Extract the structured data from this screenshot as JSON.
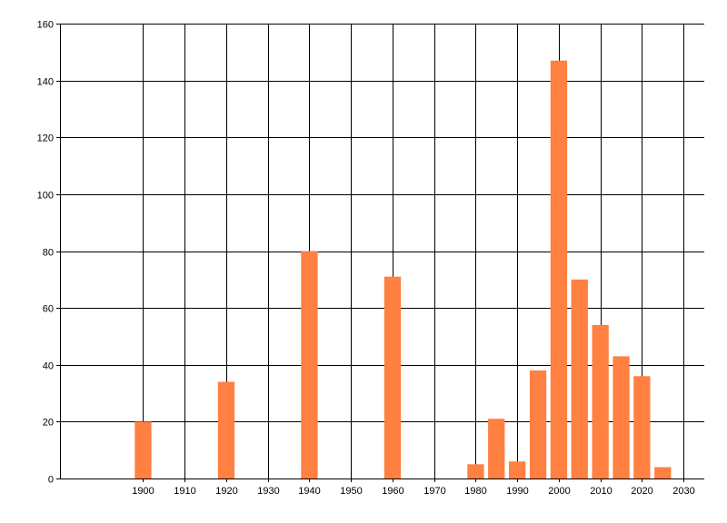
{
  "chart_data": {
    "type": "bar",
    "x": [
      1900,
      1920,
      1940,
      1960,
      1980,
      1985,
      1990,
      1995,
      2000,
      2005,
      2010,
      2015,
      2020,
      2025
    ],
    "values": [
      20,
      34,
      80,
      71,
      5,
      21,
      6,
      38,
      147,
      70,
      54,
      43,
      36,
      4
    ],
    "xlim": [
      1880,
      2035
    ],
    "ylim": [
      0,
      160
    ],
    "x_ticks": [
      "1900",
      "1910",
      "1920",
      "1930",
      "1940",
      "1950",
      "1960",
      "1970",
      "1980",
      "1990",
      "2000",
      "2010",
      "2020",
      "2030"
    ],
    "y_ticks": [
      "0",
      "20",
      "40",
      "60",
      "80",
      "100",
      "120",
      "140",
      "160"
    ],
    "grid": true,
    "bar_color": "#FF8040",
    "grid_color": "#000000",
    "title": "",
    "xlabel": "",
    "ylabel": ""
  }
}
